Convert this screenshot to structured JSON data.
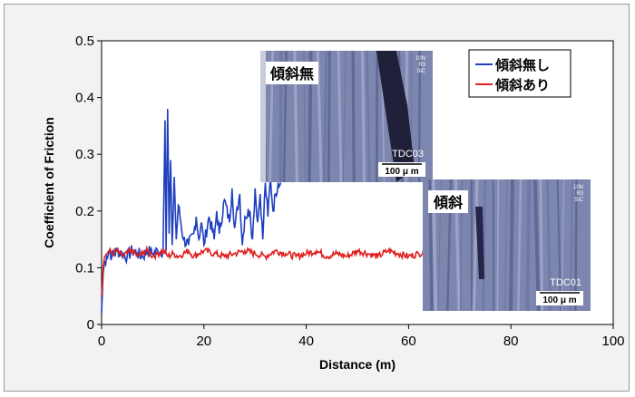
{
  "chart_data": {
    "type": "line",
    "xlabel": "Distance (m)",
    "ylabel": "Coefficient of  Friction",
    "xlim": [
      0,
      100
    ],
    "ylim": [
      0,
      0.5
    ],
    "x_ticks": [
      "0",
      "20",
      "40",
      "60",
      "80",
      "100"
    ],
    "y_ticks": [
      "0",
      "0.1",
      "0.2",
      "0.3",
      "0.4",
      "0.5"
    ],
    "x_tick_values": [
      0,
      20,
      40,
      60,
      80,
      100
    ],
    "y_tick_values": [
      0,
      0.1,
      0.2,
      0.3,
      0.4,
      0.5
    ],
    "legend_position": "top-right",
    "grid": false,
    "series": [
      {
        "name": "傾斜無し",
        "color": "#1f3fbf",
        "x": [
          0,
          0.3,
          0.6,
          1,
          1.5,
          2,
          3,
          4,
          5,
          6,
          7,
          8,
          9,
          10,
          11,
          12,
          12.4,
          12.6,
          12.9,
          13.2,
          13.5,
          13.8,
          14.2,
          14.6,
          15,
          16,
          17,
          18,
          18.5,
          19,
          19.5,
          20,
          21,
          22,
          22.5,
          23,
          24,
          25,
          25.5,
          26,
          27,
          27.5,
          28,
          29,
          29.5,
          30,
          30.5,
          31,
          31.5,
          32,
          32.5,
          33,
          33.5,
          34,
          34.5,
          35
        ],
        "y": [
          0.02,
          0.09,
          0.11,
          0.12,
          0.13,
          0.12,
          0.13,
          0.125,
          0.12,
          0.13,
          0.125,
          0.12,
          0.13,
          0.125,
          0.13,
          0.13,
          0.36,
          0.13,
          0.38,
          0.16,
          0.29,
          0.14,
          0.26,
          0.15,
          0.21,
          0.15,
          0.14,
          0.16,
          0.19,
          0.15,
          0.18,
          0.14,
          0.19,
          0.15,
          0.2,
          0.16,
          0.22,
          0.18,
          0.24,
          0.17,
          0.23,
          0.14,
          0.19,
          0.2,
          0.15,
          0.24,
          0.18,
          0.23,
          0.15,
          0.25,
          0.19,
          0.26,
          0.2,
          0.23,
          0.25,
          0.25
        ]
      },
      {
        "name": "傾斜あり",
        "color": "#e02020",
        "x": [
          0,
          0.3,
          0.6,
          1,
          1.5,
          2,
          3,
          4,
          5,
          6,
          7,
          8,
          9,
          10,
          11,
          12,
          13,
          14,
          15,
          16,
          17,
          18,
          19,
          20,
          22,
          24,
          26,
          28,
          30,
          32,
          34,
          36,
          38,
          40,
          42,
          44,
          46,
          48,
          50,
          52,
          54,
          56,
          58,
          60,
          62,
          63.5,
          64,
          65,
          70,
          75,
          80,
          85,
          90,
          95
        ],
        "y": [
          0.05,
          0.1,
          0.12,
          0.125,
          0.13,
          0.125,
          0.13,
          0.12,
          0.125,
          0.13,
          0.12,
          0.125,
          0.13,
          0.12,
          0.125,
          0.13,
          0.12,
          0.125,
          0.12,
          0.125,
          0.13,
          0.12,
          0.125,
          0.13,
          0.125,
          0.12,
          0.125,
          0.13,
          0.125,
          0.12,
          0.13,
          0.125,
          0.12,
          0.125,
          0.13,
          0.12,
          0.125,
          0.12,
          0.13,
          0.125,
          0.12,
          0.13,
          0.125,
          0.12,
          0.125,
          0.13,
          0.15,
          0.125,
          0.125,
          0.125,
          0.125,
          0.125,
          0.125,
          0.125
        ]
      }
    ]
  },
  "insets": [
    {
      "label": "傾斜無",
      "code": "TDC03",
      "scale": "100 μ m",
      "corner_text": "10N\nR3\nSiC"
    },
    {
      "label": "傾斜",
      "code": "TDC01",
      "scale": "100 μ m",
      "corner_text": "10N\nR3\nSiC"
    }
  ]
}
